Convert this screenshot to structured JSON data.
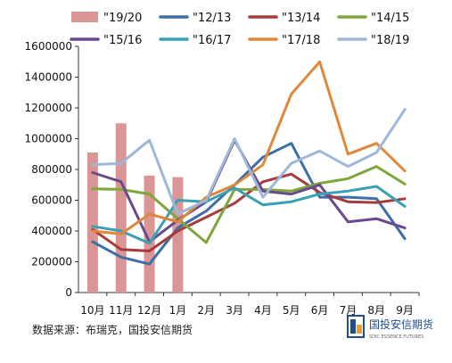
{
  "chart_data": {
    "type": "bar+line",
    "categories": [
      "10月",
      "11月",
      "12月",
      "1月",
      "2月",
      "3月",
      "4月",
      "5月",
      "6月",
      "7月",
      "8月",
      "9月"
    ],
    "ylim": [
      0,
      1600000
    ],
    "yticks": [
      0,
      200000,
      400000,
      600000,
      800000,
      1000000,
      1200000,
      1400000,
      1600000
    ],
    "grid": false,
    "legend_position": "top",
    "bar_series": {
      "name": "\"19/20",
      "color": "#d99694",
      "values": [
        910000,
        1100000,
        760000,
        750000
      ]
    },
    "series": [
      {
        "name": "\"12/13",
        "color": "#3c6ea8",
        "values": [
          330000,
          230000,
          185000,
          420000,
          530000,
          700000,
          880000,
          970000,
          620000,
          620000,
          610000,
          350000
        ]
      },
      {
        "name": "\"13/14",
        "color": "#a63b3b",
        "values": [
          410000,
          280000,
          270000,
          400000,
          490000,
          580000,
          720000,
          770000,
          650000,
          590000,
          585000,
          610000
        ]
      },
      {
        "name": "\"14/15",
        "color": "#7fa63c",
        "values": [
          675000,
          670000,
          640000,
          480000,
          325000,
          670000,
          670000,
          660000,
          710000,
          740000,
          820000,
          705000
        ]
      },
      {
        "name": "\"15/16",
        "color": "#6a4a8c",
        "values": [
          780000,
          720000,
          330000,
          470000,
          590000,
          990000,
          660000,
          640000,
          700000,
          460000,
          480000,
          420000
        ]
      },
      {
        "name": "\"16/17",
        "color": "#3aa0b5",
        "values": [
          430000,
          400000,
          320000,
          600000,
          590000,
          680000,
          570000,
          590000,
          640000,
          660000,
          690000,
          560000
        ]
      },
      {
        "name": "\"17/18",
        "color": "#e0883a",
        "values": [
          400000,
          380000,
          510000,
          460000,
          620000,
          700000,
          830000,
          1290000,
          1500000,
          900000,
          970000,
          790000
        ]
      },
      {
        "name": "\"18/19",
        "color": "#9db8d8",
        "values": [
          830000,
          840000,
          990000,
          510000,
          600000,
          1000000,
          620000,
          840000,
          920000,
          820000,
          910000,
          1190000
        ]
      }
    ]
  },
  "footer": {
    "source_text": "数据来源：布瑞克，国投安信期货"
  },
  "logo": {
    "name": "国投安信期货",
    "subtitle": "SDIC ESSENCE FUTURES"
  }
}
